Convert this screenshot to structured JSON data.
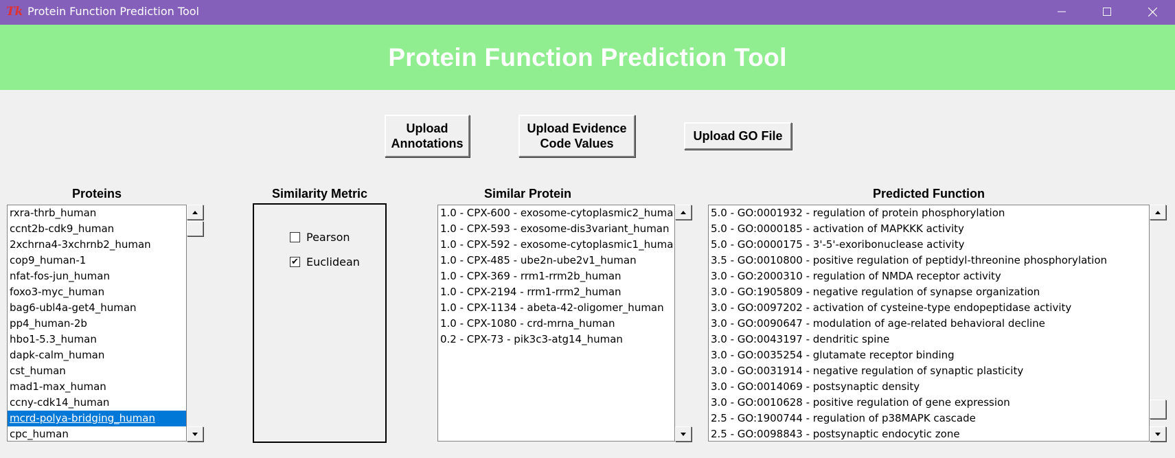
{
  "window": {
    "title": "Protein Function Prediction Tool",
    "icon": "tk-feather-icon",
    "controls": [
      "minimize-icon",
      "maximize-icon",
      "close-icon"
    ]
  },
  "header": {
    "title": "Protein Function Prediction Tool",
    "bg_color": "#90ee90"
  },
  "toolbar": {
    "upload_annotations": "Upload\nAnnotations",
    "upload_evidence": "Upload Evidence\nCode Values",
    "upload_go": "Upload GO File"
  },
  "proteins": {
    "label": "Proteins",
    "items": [
      "rxra-thrb_human",
      "ccnt2b-cdk9_human",
      "2xchrna4-3xchrnb2_human",
      "cop9_human-1",
      "nfat-fos-jun_human",
      "foxo3-myc_human",
      "bag6-ubl4a-get4_human",
      "pp4_human-2b",
      "hbo1-5.3_human",
      "dapk-calm_human",
      "cst_human",
      "mad1-max_human",
      "ccny-cdk14_human",
      "mcrd-polya-bridging_human",
      "cpc_human"
    ],
    "selected_index": 13
  },
  "similarity": {
    "label": "Similarity Metric",
    "options": [
      {
        "label": "Pearson",
        "checked": false
      },
      {
        "label": "Euclidean",
        "checked": true
      }
    ]
  },
  "similar": {
    "label": "Similar Protein",
    "items": [
      "1.0 - CPX-600 - exosome-cytoplasmic2_huma",
      "1.0 - CPX-593 - exosome-dis3variant_human",
      "1.0 - CPX-592 - exosome-cytoplasmic1_huma",
      "1.0 - CPX-485 - ube2n-ube2v1_human",
      "1.0 - CPX-369 - rrm1-rrm2b_human",
      "1.0 - CPX-2194 - rrm1-rrm2_human",
      "1.0 - CPX-1134 - abeta-42-oligomer_human",
      "1.0 - CPX-1080 - crd-mrna_human",
      "0.2 - CPX-73 - pik3c3-atg14_human"
    ]
  },
  "predicted": {
    "label": "Predicted Function",
    "items": [
      "5.0 - GO:0001932 - regulation of protein phosphorylation",
      "5.0 - GO:0000185 - activation of MAPKKK activity",
      "5.0 - GO:0000175 - 3'-5'-exoribonuclease activity",
      "3.5 - GO:0010800 - positive regulation of peptidyl-threonine phosphorylation",
      "3.0 - GO:2000310 - regulation of NMDA receptor activity",
      "3.0 - GO:1905809 - negative regulation of synapse organization",
      "3.0 - GO:0097202 - activation of cysteine-type endopeptidase activity",
      "3.0 - GO:0090647 - modulation of age-related behavioral decline",
      "3.0 - GO:0043197 - dendritic spine",
      "3.0 - GO:0035254 - glutamate receptor binding",
      "3.0 - GO:0031914 - negative regulation of synaptic plasticity",
      "3.0 - GO:0014069 - postsynaptic density",
      "3.0 - GO:0010628 - positive regulation of gene expression",
      "2.5 - GO:1900744 - regulation of p38MAPK cascade",
      "2.5 - GO:0098843 - postsynaptic endocytic zone"
    ]
  },
  "colors": {
    "titlebar": "#8560bb",
    "selection": "#0078d7"
  }
}
